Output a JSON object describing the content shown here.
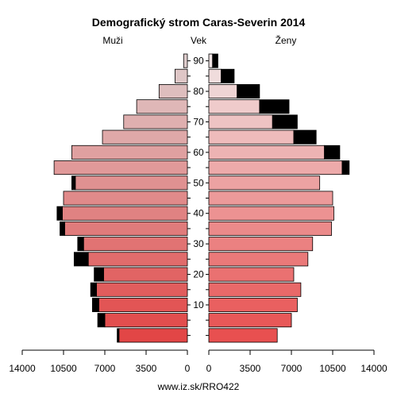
{
  "chart_data": {
    "type": "bar",
    "title": "Demografický strom Caras-Severin 2014",
    "left_label": "Muži",
    "center_label": "Vek",
    "right_label": "Ženy",
    "footer": "www.iz.sk/RRO422",
    "age_groups": [
      "0-4",
      "5-9",
      "10-14",
      "15-19",
      "20-24",
      "25-29",
      "30-34",
      "35-39",
      "40-44",
      "45-49",
      "50-54",
      "55-59",
      "60-64",
      "65-69",
      "70-74",
      "75-79",
      "80-84",
      "85-89",
      "90+"
    ],
    "age_tick_labels": [
      "10",
      "20",
      "30",
      "40",
      "50",
      "60",
      "70",
      "80",
      "90"
    ],
    "x_ticks_left": [
      "14000",
      "10500",
      "7000",
      "3500",
      "0"
    ],
    "x_ticks_right": [
      "0",
      "3500",
      "7000",
      "10500",
      "14000"
    ],
    "xlim": [
      0,
      14000
    ],
    "series": [
      {
        "name": "Muži",
        "base": [
          5800,
          7000,
          7500,
          7700,
          7100,
          8400,
          8800,
          10400,
          10600,
          10500,
          9500,
          11300,
          9800,
          7200,
          5400,
          4300,
          2400,
          1050,
          320
        ],
        "excess": [
          150,
          600,
          550,
          500,
          800,
          1200,
          500,
          400,
          450,
          0,
          300,
          0,
          0,
          0,
          0,
          0,
          0,
          0,
          0
        ]
      },
      {
        "name": "Ženy",
        "base": [
          5800,
          7000,
          7500,
          7800,
          7200,
          8400,
          8800,
          10400,
          10600,
          10500,
          9400,
          11300,
          9800,
          7200,
          5400,
          4300,
          2400,
          1050,
          320
        ],
        "excess": [
          0,
          0,
          0,
          0,
          0,
          0,
          0,
          0,
          0,
          0,
          0,
          600,
          1300,
          1900,
          2100,
          2500,
          1900,
          1100,
          450
        ]
      }
    ]
  }
}
